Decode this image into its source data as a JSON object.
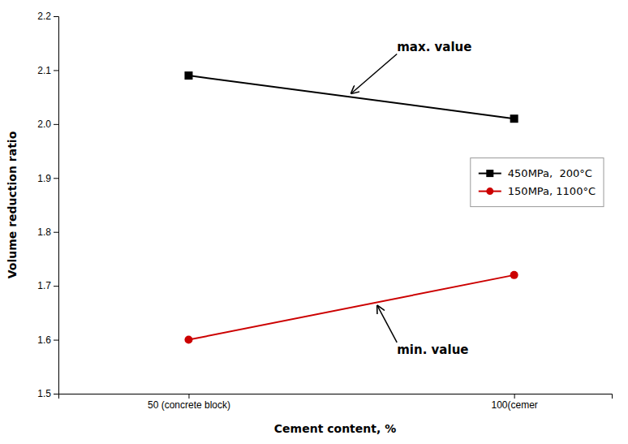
{
  "chart_data": {
    "type": "line",
    "x": [
      50,
      100
    ],
    "series": [
      {
        "name": "450MPa,  200°C",
        "color": "#000000",
        "marker": "square",
        "values": [
          2.09,
          2.01
        ]
      },
      {
        "name": "150MPa, 1100°C",
        "color": "#cc0000",
        "marker": "circle",
        "values": [
          1.6,
          1.72
        ]
      }
    ],
    "x_label": "Cement content, %",
    "y_label": "Volume reduction ratio",
    "xlim": [
      30,
      115
    ],
    "xticks": [
      {
        "value": 50,
        "label": "50 (concrete block)"
      },
      {
        "value": 100,
        "label": "100(cemer"
      }
    ],
    "ylim": [
      1.5,
      2.2
    ],
    "yticks": [
      1.5,
      1.6,
      1.7,
      1.8,
      1.9,
      {
        "value": 2.0,
        "label": "2.0"
      },
      2.1,
      2.2
    ],
    "annotations": [
      {
        "text": "max. value",
        "xy": [
          75,
          2.057
        ],
        "xytext": [
          82,
          2.13
        ]
      },
      {
        "text": "min. value",
        "xy": [
          79,
          1.663
        ],
        "xytext": [
          82,
          1.595
        ]
      }
    ],
    "legend": "right",
    "grid": false
  }
}
